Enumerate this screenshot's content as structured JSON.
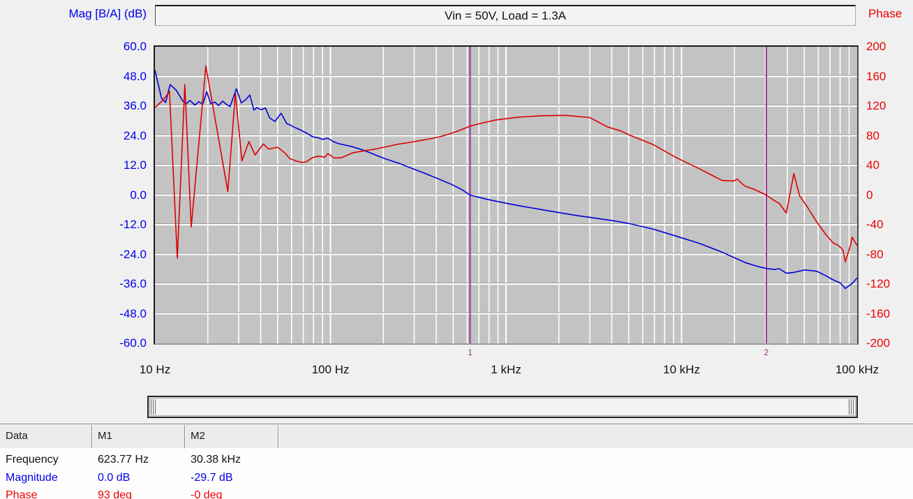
{
  "header": {
    "mag_axis_title": "Mag [B/A] (dB)",
    "phase_axis_title": "Phase",
    "title": "Vin = 50V, Load = 1.3A"
  },
  "axes": {
    "mag_ticks": [
      "60.0",
      "48.0",
      "36.0",
      "24.0",
      "12.0",
      "0.0",
      "-12.0",
      "-24.0",
      "-36.0",
      "-48.0",
      "-60.0"
    ],
    "phase_ticks": [
      "200",
      "160",
      "120",
      "80",
      "40",
      "0",
      "-40",
      "-80",
      "-120",
      "-160",
      "-200"
    ],
    "freq_ticks": [
      "10 Hz",
      "100 Hz",
      "1 kHz",
      "10 kHz",
      "100 kHz"
    ]
  },
  "colors": {
    "mag_curve": "#0000d8",
    "phase_curve": "#dc0000",
    "mag_text": "#0000ee",
    "phase_text": "#ee0000",
    "marker": "#993399",
    "grid": "#ffffff",
    "grid_shadow": "#9b9b9b",
    "plot_bg": "#c3c3c3",
    "page_bg": "#f0f0f0"
  },
  "markers": [
    {
      "id": "1",
      "freq_hz": 623.77
    },
    {
      "id": "2",
      "freq_hz": 30380
    }
  ],
  "chart_data": {
    "type": "line",
    "title": "Vin = 50V, Load = 1.3A",
    "x_axis": {
      "label": "Frequency",
      "scale": "log",
      "range_hz": [
        10,
        100000
      ],
      "tick_labels": [
        "10 Hz",
        "100 Hz",
        "1 kHz",
        "10 kHz",
        "100 kHz"
      ]
    },
    "y_left": {
      "label": "Mag [B/A] (dB)",
      "range": [
        -60,
        60
      ],
      "tick_step": 12
    },
    "y_right": {
      "label": "Phase",
      "range": [
        -200,
        200
      ],
      "tick_step": 40
    },
    "grid": true,
    "legend_position": "none",
    "series": [
      {
        "name": "Magnitude",
        "axis": "left",
        "color": "#0000d8",
        "unit": "dB",
        "points": [
          [
            10,
            50.5
          ],
          [
            10.9,
            39.2
          ],
          [
            11.5,
            37.5
          ],
          [
            12.2,
            44.7
          ],
          [
            13.2,
            42.5
          ],
          [
            14.4,
            38.1
          ],
          [
            15.1,
            36.9
          ],
          [
            15.8,
            38.3
          ],
          [
            16.9,
            36.4
          ],
          [
            17.8,
            37.8
          ],
          [
            18.7,
            36.7
          ],
          [
            19.7,
            41.8
          ],
          [
            20.8,
            36.9
          ],
          [
            22,
            37.6
          ],
          [
            23,
            36.2
          ],
          [
            24.3,
            38.0
          ],
          [
            25.5,
            36.7
          ],
          [
            26.8,
            35.8
          ],
          [
            29.1,
            43.0
          ],
          [
            31,
            37.3
          ],
          [
            32.8,
            38.5
          ],
          [
            34.7,
            40.5
          ],
          [
            36.6,
            34.4
          ],
          [
            38.1,
            35.4
          ],
          [
            40.3,
            34.5
          ],
          [
            42.6,
            35.2
          ],
          [
            45,
            31.2
          ],
          [
            48.2,
            29.8
          ],
          [
            52.3,
            33.1
          ],
          [
            56.4,
            28.9
          ],
          [
            58.7,
            28.4
          ],
          [
            61.5,
            27.6
          ],
          [
            67,
            26.4
          ],
          [
            73,
            25.1
          ],
          [
            79,
            23.6
          ],
          [
            85,
            23.2
          ],
          [
            90,
            22.5
          ],
          [
            96.5,
            23.0
          ],
          [
            104,
            21.6
          ],
          [
            111,
            20.8
          ],
          [
            120,
            20.3
          ],
          [
            131,
            19.7
          ],
          [
            150,
            18.4
          ],
          [
            167,
            17.2
          ],
          [
            203,
            14.8
          ],
          [
            244,
            12.9
          ],
          [
            296,
            10.6
          ],
          [
            350,
            8.6
          ],
          [
            416,
            6.4
          ],
          [
            490,
            4.3
          ],
          [
            560,
            2.2
          ],
          [
            623.77,
            0.0
          ],
          [
            700,
            -0.9
          ],
          [
            800,
            -1.9
          ],
          [
            1000,
            -3.3
          ],
          [
            1250,
            -4.6
          ],
          [
            1600,
            -5.9
          ],
          [
            2000,
            -7.1
          ],
          [
            2550,
            -8.3
          ],
          [
            3200,
            -9.3
          ],
          [
            4100,
            -10.4
          ],
          [
            5100,
            -11.6
          ],
          [
            6900,
            -13.8
          ],
          [
            9300,
            -16.6
          ],
          [
            12600,
            -19.5
          ],
          [
            17000,
            -23.1
          ],
          [
            20500,
            -25.7
          ],
          [
            23000,
            -27.3
          ],
          [
            26900,
            -28.8
          ],
          [
            30380,
            -29.7
          ],
          [
            33800,
            -30.1
          ],
          [
            36000,
            -29.8
          ],
          [
            39500,
            -31.6
          ],
          [
            43400,
            -31.3
          ],
          [
            50300,
            -30.3
          ],
          [
            58900,
            -30.8
          ],
          [
            66500,
            -32.7
          ],
          [
            73000,
            -34.3
          ],
          [
            80000,
            -35.5
          ],
          [
            85600,
            -37.8
          ],
          [
            93600,
            -35.8
          ],
          [
            100000,
            -33.5
          ]
        ]
      },
      {
        "name": "Phase",
        "axis": "right",
        "color": "#dc0000",
        "unit": "deg",
        "points": [
          [
            10,
            118
          ],
          [
            11,
            127
          ],
          [
            11.9,
            137
          ],
          [
            12.1,
            140
          ],
          [
            13.4,
            -85
          ],
          [
            14.8,
            149
          ],
          [
            16.1,
            -43
          ],
          [
            19.5,
            174
          ],
          [
            26,
            5
          ],
          [
            28.7,
            137
          ],
          [
            31.3,
            46
          ],
          [
            34.3,
            72
          ],
          [
            37.2,
            54
          ],
          [
            41.5,
            69
          ],
          [
            44.3,
            62
          ],
          [
            50,
            64.5
          ],
          [
            54.8,
            57
          ],
          [
            58.7,
            49
          ],
          [
            63.6,
            46
          ],
          [
            68.8,
            44
          ],
          [
            72.9,
            45
          ],
          [
            79,
            50.5
          ],
          [
            85.8,
            52.5
          ],
          [
            93,
            51
          ],
          [
            96.5,
            56
          ],
          [
            105,
            50
          ],
          [
            115,
            50.3
          ],
          [
            134,
            57
          ],
          [
            150,
            59
          ],
          [
            180,
            62
          ],
          [
            211,
            65.5
          ],
          [
            244,
            68.7
          ],
          [
            283,
            71
          ],
          [
            327,
            73.7
          ],
          [
            376,
            76.2
          ],
          [
            424,
            79
          ],
          [
            470,
            82
          ],
          [
            540,
            87
          ],
          [
            623.77,
            93
          ],
          [
            700,
            96
          ],
          [
            860,
            101
          ],
          [
            1170,
            105
          ],
          [
            1600,
            107
          ],
          [
            2200,
            107.5
          ],
          [
            3000,
            104.5
          ],
          [
            3780,
            92
          ],
          [
            4500,
            86.5
          ],
          [
            5100,
            80.5
          ],
          [
            6900,
            68
          ],
          [
            9300,
            50.6
          ],
          [
            12600,
            35.6
          ],
          [
            17000,
            19.7
          ],
          [
            19800,
            19
          ],
          [
            20700,
            21.5
          ],
          [
            23000,
            12
          ],
          [
            26000,
            7.5
          ],
          [
            30380,
            0
          ],
          [
            33800,
            -7.5
          ],
          [
            36000,
            -11.2
          ],
          [
            39500,
            -24.4
          ],
          [
            43600,
            29
          ],
          [
            47000,
            -1
          ],
          [
            52000,
            -16
          ],
          [
            59000,
            -36.6
          ],
          [
            66500,
            -53.6
          ],
          [
            73000,
            -64.6
          ],
          [
            77600,
            -67.4
          ],
          [
            83000,
            -74
          ],
          [
            85600,
            -90
          ],
          [
            92000,
            -66
          ],
          [
            93600,
            -57
          ],
          [
            100000,
            -68
          ]
        ]
      }
    ]
  },
  "table": {
    "headers": [
      "Data",
      "M1",
      "M2"
    ],
    "rows": [
      {
        "label": "Frequency",
        "m1": "623.77 Hz",
        "m2": "30.38 kHz",
        "color": "#111111"
      },
      {
        "label": "Magnitude",
        "m1": "0.0 dB",
        "m2": "-29.7 dB",
        "color": "#0000ee"
      },
      {
        "label": "Phase",
        "m1": "93 deg",
        "m2": "-0 deg",
        "color": "#ee0000"
      }
    ]
  }
}
